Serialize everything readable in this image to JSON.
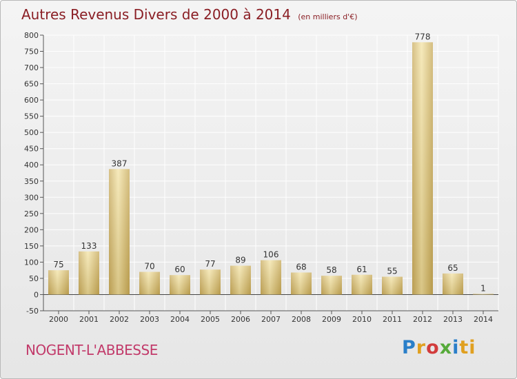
{
  "chart_data": {
    "type": "bar",
    "title": "Autres Revenus Divers de 2000 à 2014",
    "subtitle": "(en milliers d'€)",
    "categories": [
      "2000",
      "2001",
      "2002",
      "2003",
      "2004",
      "2005",
      "2006",
      "2007",
      "2008",
      "2009",
      "2010",
      "2011",
      "2012",
      "2013",
      "2014"
    ],
    "values": [
      75,
      133,
      387,
      70,
      60,
      77,
      89,
      106,
      68,
      58,
      61,
      55,
      778,
      65,
      1
    ],
    "ylim": [
      -50,
      800
    ],
    "yticks": [
      -50,
      0,
      50,
      100,
      150,
      200,
      250,
      300,
      350,
      400,
      450,
      500,
      550,
      600,
      650,
      700,
      750,
      800
    ],
    "grid": true,
    "bar_color": "#d8c07a"
  },
  "footer": {
    "commune": "NOGENT-L'ABBESSE",
    "logo": [
      "P",
      "r",
      "o",
      "x",
      "i",
      "ti"
    ]
  }
}
